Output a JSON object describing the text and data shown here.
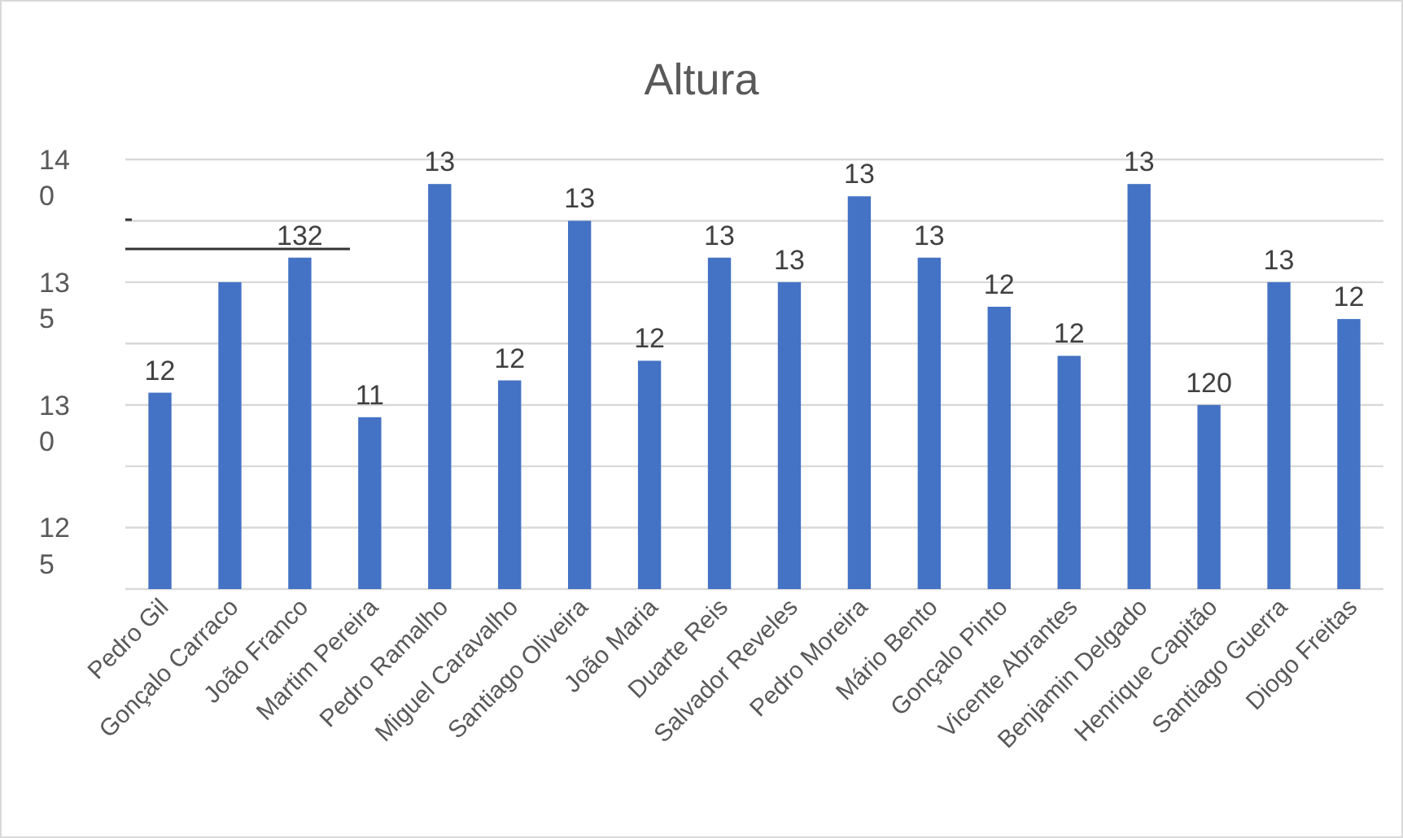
{
  "chart_data": {
    "type": "bar",
    "title": "Altura",
    "categories": [
      "Pedro Gil",
      "Gonçalo Carraco",
      "João Franco",
      "Martim Pereira",
      "Pedro Ramalho",
      "Miguel Caravalho",
      "Santiago Oliveira",
      "João Maria",
      "Duarte Reis",
      "Salvador Reveles",
      "Pedro Moreira",
      "Mário Bento",
      "Gonçalo Pinto",
      "Vicente Abrantes",
      "Benjamin Delgado",
      "Henrique Capitão",
      "Santiago Guerra",
      "Diogo Freitas"
    ],
    "values": [
      130.5,
      135,
      136,
      129.5,
      139,
      131,
      137.5,
      131.8,
      136,
      135,
      138.5,
      136,
      134,
      132,
      139,
      130,
      135,
      133.5
    ],
    "annotations": [
      {
        "text": "12",
        "x": "Pedro Gil",
        "y": 130.5
      },
      {
        "text": "132",
        "x": "João Franco",
        "y": 136
      },
      {
        "text": "11",
        "x": "Martim Pereira",
        "y": 129.5
      },
      {
        "text": "13",
        "x": "Pedro Ramalho",
        "y": 139
      },
      {
        "text": "12",
        "x": "Miguel Caravalho",
        "y": 131
      },
      {
        "text": "13",
        "x": "Santiago Oliveira",
        "y": 137.5
      },
      {
        "text": "12",
        "x": "João Maria",
        "y": 131.8
      },
      {
        "text": "13",
        "x": "Duarte Reis",
        "y": 136
      },
      {
        "text": "13",
        "x": "Salvador Reveles",
        "y": 135
      },
      {
        "text": "13",
        "x": "Pedro Moreira",
        "y": 138.5
      },
      {
        "text": "13",
        "x": "Mário Bento",
        "y": 136
      },
      {
        "text": "12",
        "x": "Gonçalo Pinto",
        "y": 134
      },
      {
        "text": "12",
        "x": "Vicente Abrantes",
        "y": 132
      },
      {
        "text": "13",
        "x": "Benjamin Delgado",
        "y": 139
      },
      {
        "text": "120",
        "x": "Henrique Capitão",
        "y": 130
      },
      {
        "text": "13",
        "x": "Santiago Guerra",
        "y": 135
      },
      {
        "text": "12",
        "x": "Diogo Freitas",
        "y": 133.5
      }
    ],
    "color": "#4472c4",
    "ylim": [
      122.5,
      140
    ],
    "yticks": [
      {
        "value": 122.5,
        "label": null
      },
      {
        "value": 125,
        "label": "125"
      },
      {
        "value": 127.5,
        "label": null
      },
      {
        "value": 130,
        "label": "130"
      },
      {
        "value": 132.5,
        "label": null
      },
      {
        "value": 135,
        "label": "135"
      },
      {
        "value": 137.5,
        "label": null
      },
      {
        "value": 140,
        "label": "140"
      }
    ],
    "grid": "y"
  }
}
